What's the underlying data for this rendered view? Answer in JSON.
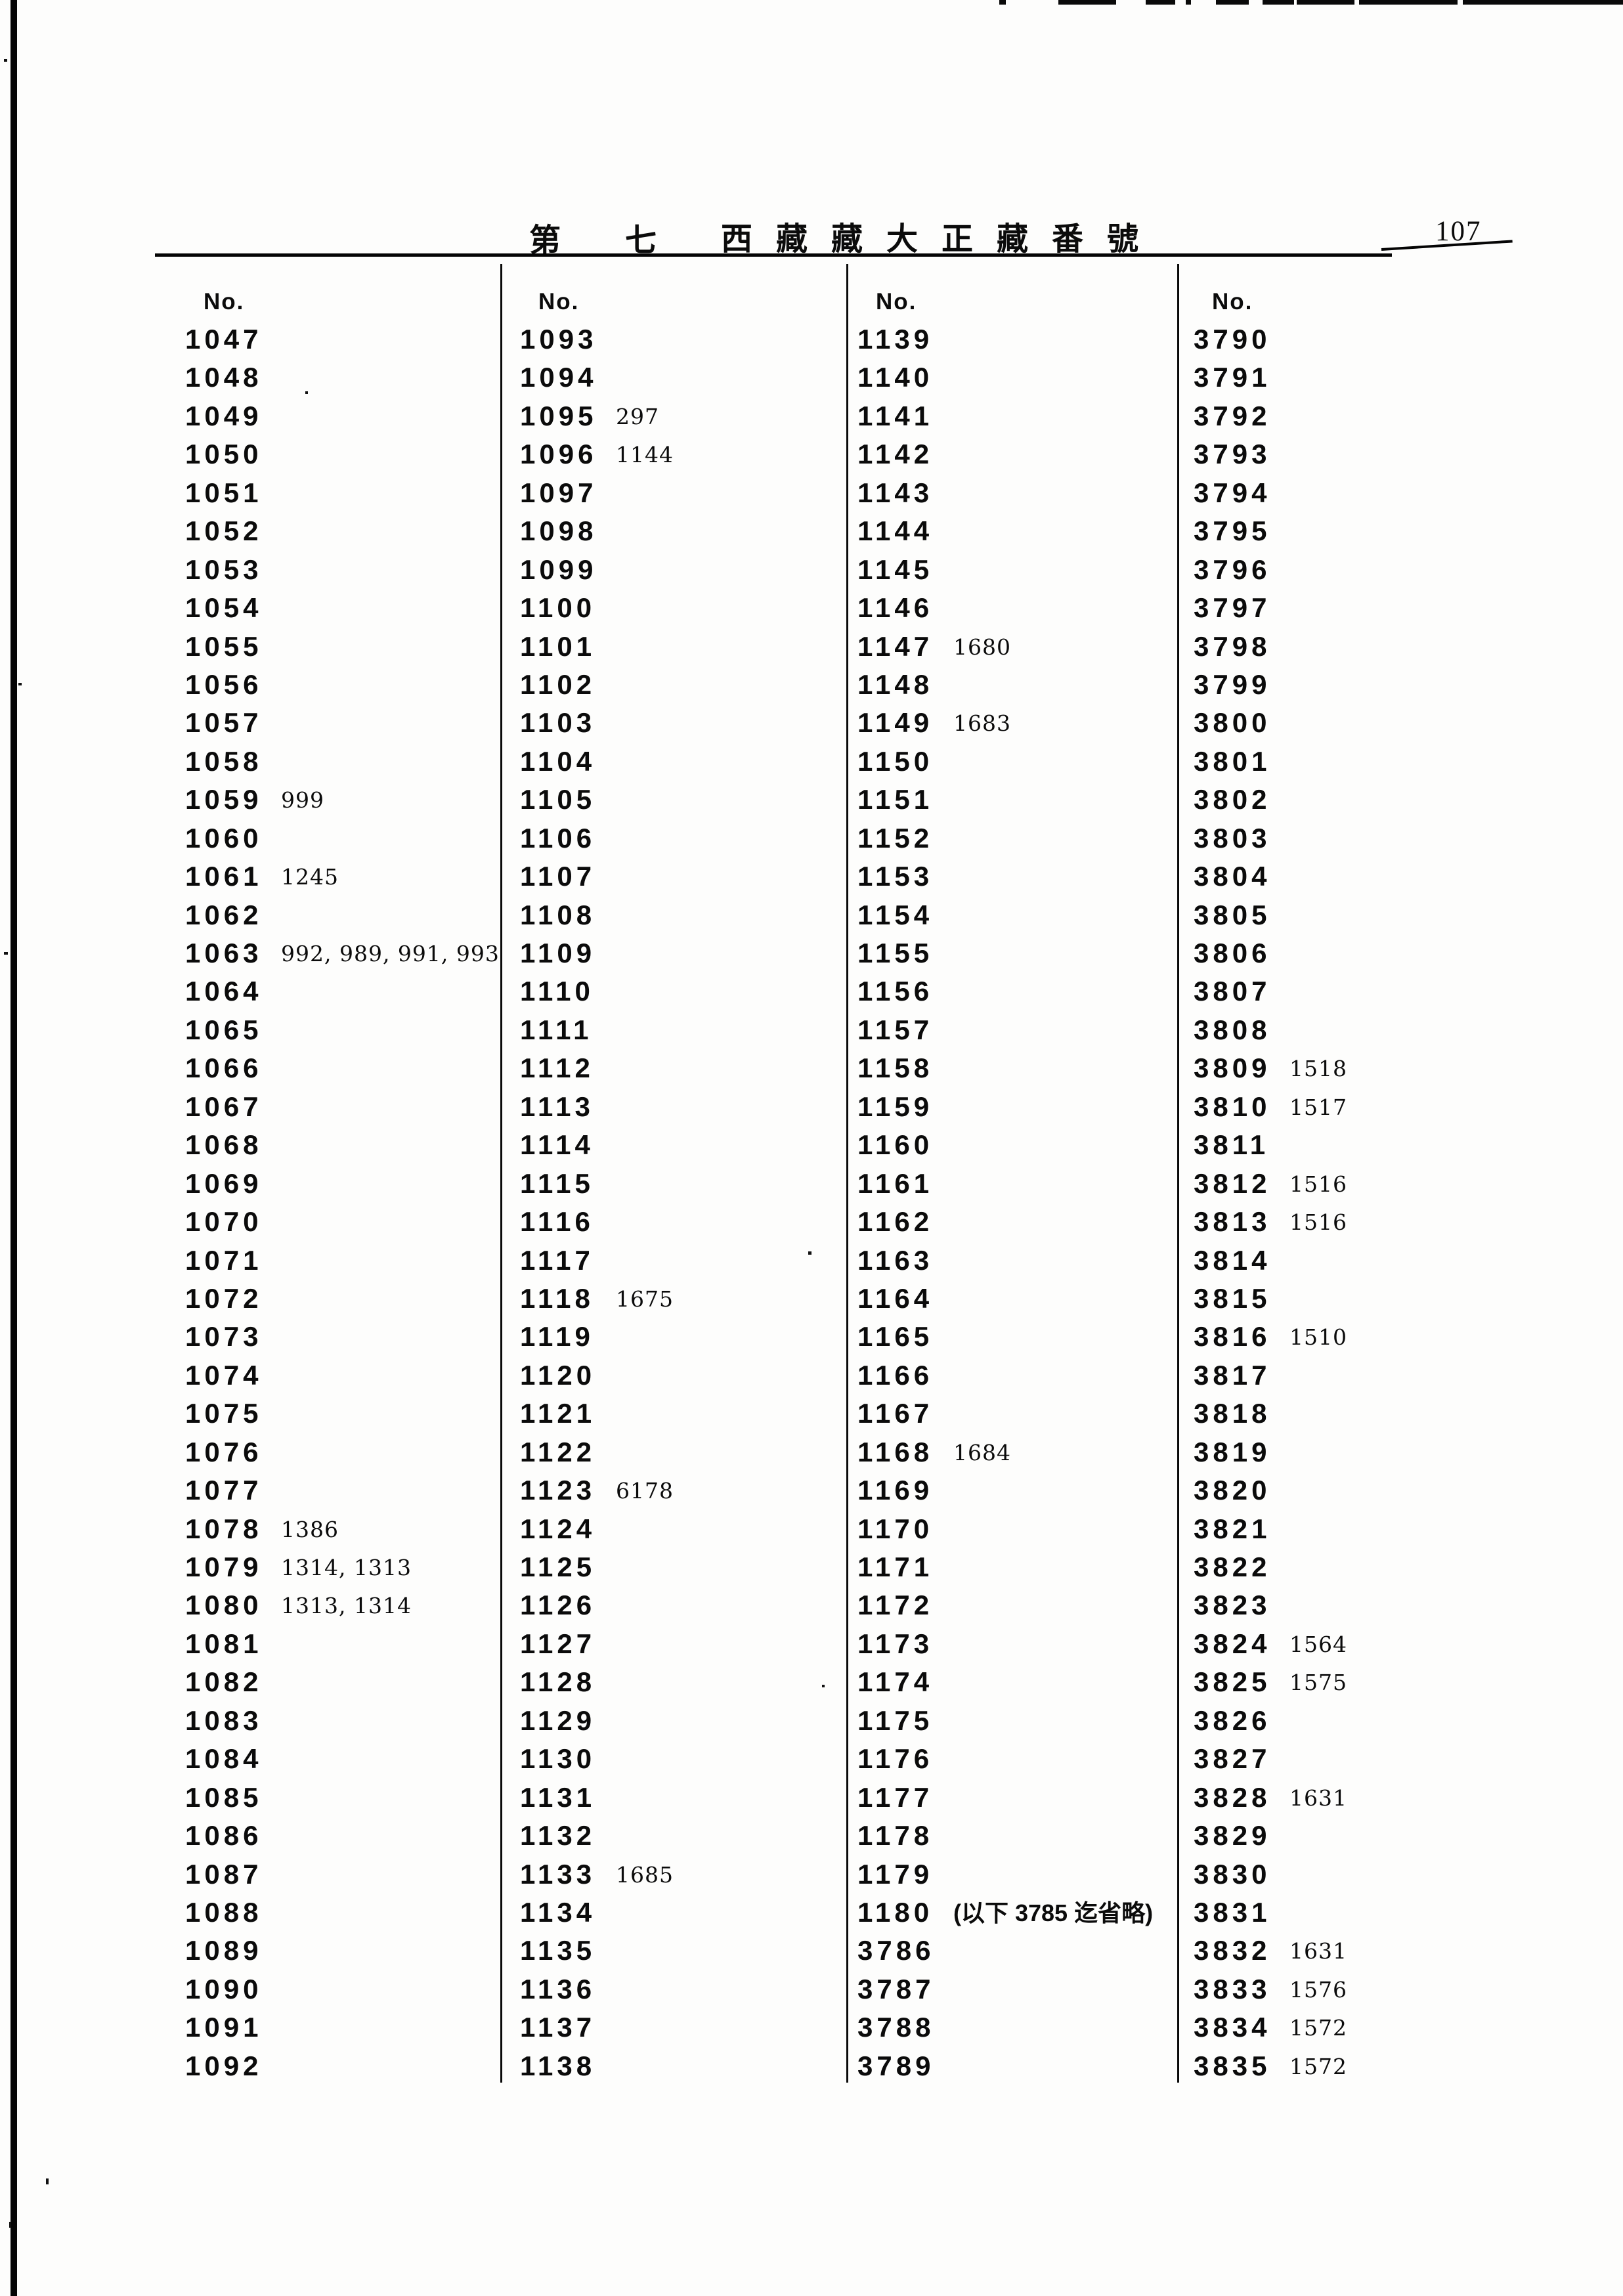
{
  "page_header": {
    "part_prefix": "第",
    "part_number": "七",
    "title": "西藏藏大正藏番號",
    "page_number": "107"
  },
  "table": {
    "columns": [
      {
        "header": "No.",
        "entries": [
          {
            "no": "1047",
            "note": ""
          },
          {
            "no": "1048",
            "note": ""
          },
          {
            "no": "1049",
            "note": ""
          },
          {
            "no": "1050",
            "note": ""
          },
          {
            "no": "1051",
            "note": ""
          },
          {
            "no": "1052",
            "note": ""
          },
          {
            "no": "1053",
            "note": ""
          },
          {
            "no": "1054",
            "note": ""
          },
          {
            "no": "1055",
            "note": ""
          },
          {
            "no": "1056",
            "note": ""
          },
          {
            "no": "1057",
            "note": ""
          },
          {
            "no": "1058",
            "note": ""
          },
          {
            "no": "1059",
            "note": "999"
          },
          {
            "no": "1060",
            "note": ""
          },
          {
            "no": "1061",
            "note": "1245"
          },
          {
            "no": "1062",
            "note": ""
          },
          {
            "no": "1063",
            "note": "992, 989, 991, 993"
          },
          {
            "no": "1064",
            "note": ""
          },
          {
            "no": "1065",
            "note": ""
          },
          {
            "no": "1066",
            "note": ""
          },
          {
            "no": "1067",
            "note": ""
          },
          {
            "no": "1068",
            "note": ""
          },
          {
            "no": "1069",
            "note": ""
          },
          {
            "no": "1070",
            "note": ""
          },
          {
            "no": "1071",
            "note": ""
          },
          {
            "no": "1072",
            "note": ""
          },
          {
            "no": "1073",
            "note": ""
          },
          {
            "no": "1074",
            "note": ""
          },
          {
            "no": "1075",
            "note": ""
          },
          {
            "no": "1076",
            "note": ""
          },
          {
            "no": "1077",
            "note": ""
          },
          {
            "no": "1078",
            "note": "1386"
          },
          {
            "no": "1079",
            "note": "1314, 1313"
          },
          {
            "no": "1080",
            "note": "1313, 1314"
          },
          {
            "no": "1081",
            "note": ""
          },
          {
            "no": "1082",
            "note": ""
          },
          {
            "no": "1083",
            "note": ""
          },
          {
            "no": "1084",
            "note": ""
          },
          {
            "no": "1085",
            "note": ""
          },
          {
            "no": "1086",
            "note": ""
          },
          {
            "no": "1087",
            "note": ""
          },
          {
            "no": "1088",
            "note": ""
          },
          {
            "no": "1089",
            "note": ""
          },
          {
            "no": "1090",
            "note": ""
          },
          {
            "no": "1091",
            "note": ""
          },
          {
            "no": "1092",
            "note": ""
          }
        ]
      },
      {
        "header": "No.",
        "entries": [
          {
            "no": "1093",
            "note": ""
          },
          {
            "no": "1094",
            "note": ""
          },
          {
            "no": "1095",
            "note": "297"
          },
          {
            "no": "1096",
            "note": "1144"
          },
          {
            "no": "1097",
            "note": ""
          },
          {
            "no": "1098",
            "note": ""
          },
          {
            "no": "1099",
            "note": ""
          },
          {
            "no": "1100",
            "note": ""
          },
          {
            "no": "1101",
            "note": ""
          },
          {
            "no": "1102",
            "note": ""
          },
          {
            "no": "1103",
            "note": ""
          },
          {
            "no": "1104",
            "note": ""
          },
          {
            "no": "1105",
            "note": ""
          },
          {
            "no": "1106",
            "note": ""
          },
          {
            "no": "1107",
            "note": ""
          },
          {
            "no": "1108",
            "note": ""
          },
          {
            "no": "1109",
            "note": ""
          },
          {
            "no": "1110",
            "note": ""
          },
          {
            "no": "1111",
            "note": ""
          },
          {
            "no": "1112",
            "note": ""
          },
          {
            "no": "1113",
            "note": ""
          },
          {
            "no": "1114",
            "note": ""
          },
          {
            "no": "1115",
            "note": ""
          },
          {
            "no": "1116",
            "note": ""
          },
          {
            "no": "1117",
            "note": ""
          },
          {
            "no": "1118",
            "note": "1675"
          },
          {
            "no": "1119",
            "note": ""
          },
          {
            "no": "1120",
            "note": ""
          },
          {
            "no": "1121",
            "note": ""
          },
          {
            "no": "1122",
            "note": ""
          },
          {
            "no": "1123",
            "note": "6178"
          },
          {
            "no": "1124",
            "note": ""
          },
          {
            "no": "1125",
            "note": ""
          },
          {
            "no": "1126",
            "note": ""
          },
          {
            "no": "1127",
            "note": ""
          },
          {
            "no": "1128",
            "note": ""
          },
          {
            "no": "1129",
            "note": ""
          },
          {
            "no": "1130",
            "note": ""
          },
          {
            "no": "1131",
            "note": ""
          },
          {
            "no": "1132",
            "note": ""
          },
          {
            "no": "1133",
            "note": "1685"
          },
          {
            "no": "1134",
            "note": ""
          },
          {
            "no": "1135",
            "note": ""
          },
          {
            "no": "1136",
            "note": ""
          },
          {
            "no": "1137",
            "note": ""
          },
          {
            "no": "1138",
            "note": ""
          }
        ]
      },
      {
        "header": "No.",
        "entries": [
          {
            "no": "1139",
            "note": ""
          },
          {
            "no": "1140",
            "note": ""
          },
          {
            "no": "1141",
            "note": ""
          },
          {
            "no": "1142",
            "note": ""
          },
          {
            "no": "1143",
            "note": ""
          },
          {
            "no": "1144",
            "note": ""
          },
          {
            "no": "1145",
            "note": ""
          },
          {
            "no": "1146",
            "note": ""
          },
          {
            "no": "1147",
            "note": "1680"
          },
          {
            "no": "1148",
            "note": ""
          },
          {
            "no": "1149",
            "note": "1683"
          },
          {
            "no": "1150",
            "note": ""
          },
          {
            "no": "1151",
            "note": ""
          },
          {
            "no": "1152",
            "note": ""
          },
          {
            "no": "1153",
            "note": ""
          },
          {
            "no": "1154",
            "note": ""
          },
          {
            "no": "1155",
            "note": ""
          },
          {
            "no": "1156",
            "note": ""
          },
          {
            "no": "1157",
            "note": ""
          },
          {
            "no": "1158",
            "note": ""
          },
          {
            "no": "1159",
            "note": ""
          },
          {
            "no": "1160",
            "note": ""
          },
          {
            "no": "1161",
            "note": ""
          },
          {
            "no": "1162",
            "note": ""
          },
          {
            "no": "1163",
            "note": ""
          },
          {
            "no": "1164",
            "note": ""
          },
          {
            "no": "1165",
            "note": ""
          },
          {
            "no": "1166",
            "note": ""
          },
          {
            "no": "1167",
            "note": ""
          },
          {
            "no": "1168",
            "note": "1684"
          },
          {
            "no": "1169",
            "note": ""
          },
          {
            "no": "1170",
            "note": ""
          },
          {
            "no": "1171",
            "note": ""
          },
          {
            "no": "1172",
            "note": ""
          },
          {
            "no": "1173",
            "note": ""
          },
          {
            "no": "1174",
            "note": ""
          },
          {
            "no": "1175",
            "note": ""
          },
          {
            "no": "1176",
            "note": ""
          },
          {
            "no": "1177",
            "note": ""
          },
          {
            "no": "1178",
            "note": ""
          },
          {
            "no": "1179",
            "note": ""
          },
          {
            "no": "1180",
            "note": "(以下 3785 迄省略)"
          },
          {
            "no": "3786",
            "note": ""
          },
          {
            "no": "3787",
            "note": ""
          },
          {
            "no": "3788",
            "note": ""
          },
          {
            "no": "3789",
            "note": ""
          }
        ]
      },
      {
        "header": "No.",
        "entries": [
          {
            "no": "3790",
            "note": ""
          },
          {
            "no": "3791",
            "note": ""
          },
          {
            "no": "3792",
            "note": ""
          },
          {
            "no": "3793",
            "note": ""
          },
          {
            "no": "3794",
            "note": ""
          },
          {
            "no": "3795",
            "note": ""
          },
          {
            "no": "3796",
            "note": ""
          },
          {
            "no": "3797",
            "note": ""
          },
          {
            "no": "3798",
            "note": ""
          },
          {
            "no": "3799",
            "note": ""
          },
          {
            "no": "3800",
            "note": ""
          },
          {
            "no": "3801",
            "note": ""
          },
          {
            "no": "3802",
            "note": ""
          },
          {
            "no": "3803",
            "note": ""
          },
          {
            "no": "3804",
            "note": ""
          },
          {
            "no": "3805",
            "note": ""
          },
          {
            "no": "3806",
            "note": ""
          },
          {
            "no": "3807",
            "note": ""
          },
          {
            "no": "3808",
            "note": ""
          },
          {
            "no": "3809",
            "note": "1518"
          },
          {
            "no": "3810",
            "note": "1517"
          },
          {
            "no": "3811",
            "note": ""
          },
          {
            "no": "3812",
            "note": "1516"
          },
          {
            "no": "3813",
            "note": "1516"
          },
          {
            "no": "3814",
            "note": ""
          },
          {
            "no": "3815",
            "note": ""
          },
          {
            "no": "3816",
            "note": "1510"
          },
          {
            "no": "3817",
            "note": ""
          },
          {
            "no": "3818",
            "note": ""
          },
          {
            "no": "3819",
            "note": ""
          },
          {
            "no": "3820",
            "note": ""
          },
          {
            "no": "3821",
            "note": ""
          },
          {
            "no": "3822",
            "note": ""
          },
          {
            "no": "3823",
            "note": ""
          },
          {
            "no": "3824",
            "note": "1564"
          },
          {
            "no": "3825",
            "note": "1575"
          },
          {
            "no": "3826",
            "note": ""
          },
          {
            "no": "3827",
            "note": ""
          },
          {
            "no": "3828",
            "note": "1631"
          },
          {
            "no": "3829",
            "note": ""
          },
          {
            "no": "3830",
            "note": ""
          },
          {
            "no": "3831",
            "note": ""
          },
          {
            "no": "3832",
            "note": "1631"
          },
          {
            "no": "3833",
            "note": "1576"
          },
          {
            "no": "3834",
            "note": "1572"
          },
          {
            "no": "3835",
            "note": "1572"
          }
        ]
      }
    ]
  }
}
